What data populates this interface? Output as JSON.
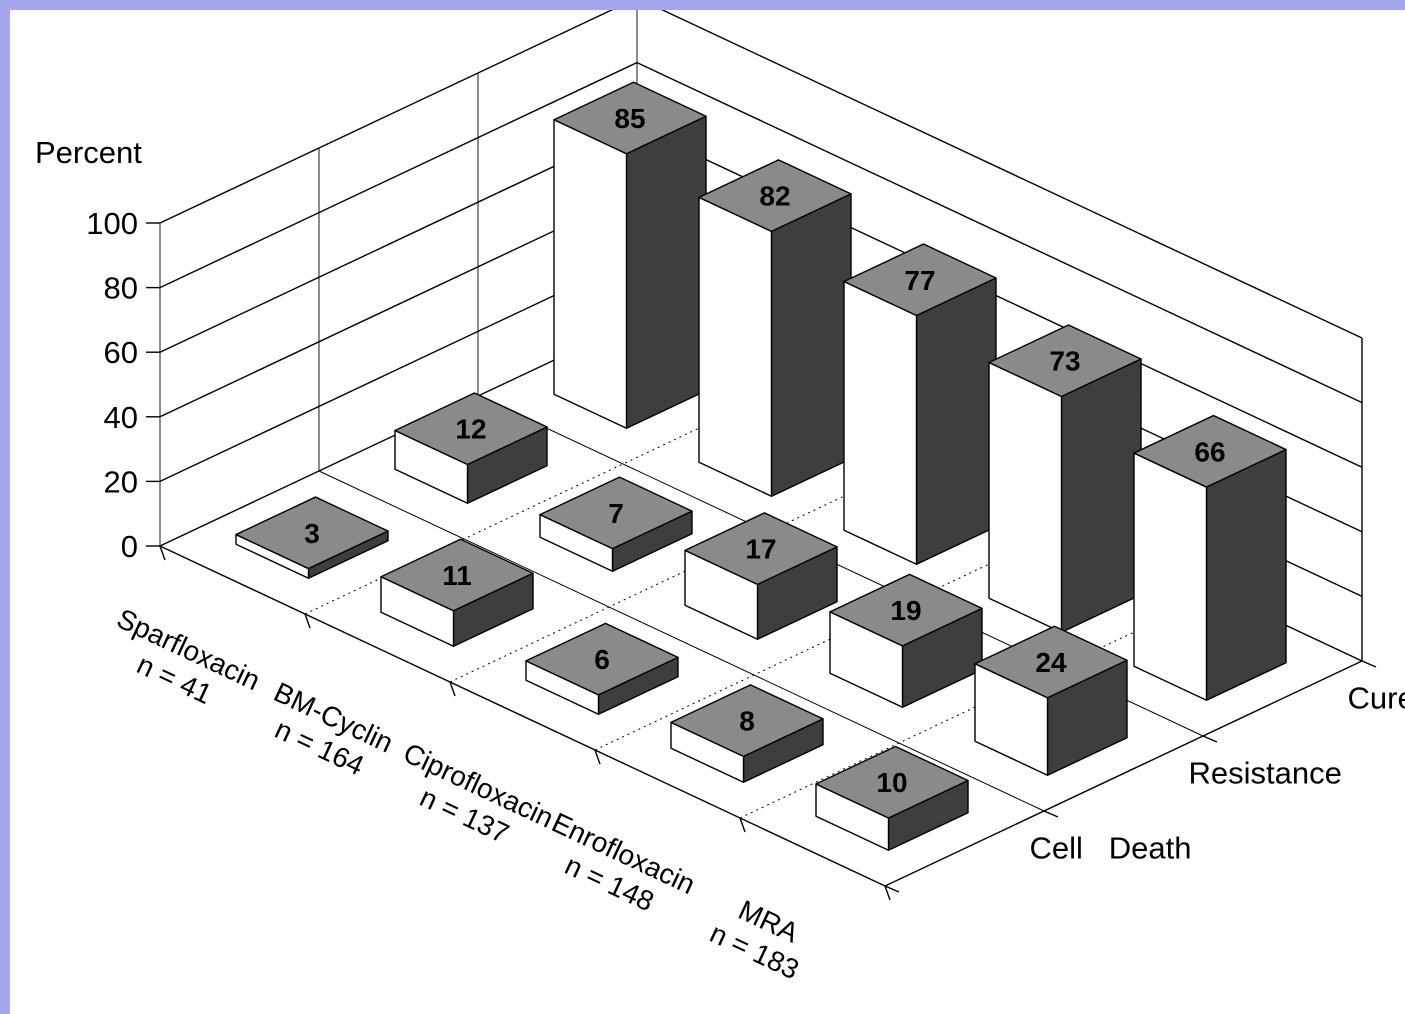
{
  "chart_data": {
    "type": "bar",
    "title": "",
    "ylabel": "Percent",
    "ylim": [
      0,
      100
    ],
    "yticks": [
      0,
      20,
      40,
      60,
      80,
      100
    ],
    "categories": [
      {
        "name": "Sparfloxacin",
        "n": "n = 41"
      },
      {
        "name": "BM-Cyclin",
        "n": "n = 164"
      },
      {
        "name": "Ciprofloxacin",
        "n": "n = 137"
      },
      {
        "name": "Enrofloxacin",
        "n": "n = 148"
      },
      {
        "name": "MRA",
        "n": "n = 183"
      }
    ],
    "series": [
      {
        "name": "Cell   Death",
        "values": [
          3,
          11,
          6,
          8,
          10
        ]
      },
      {
        "name": "Resistance",
        "values": [
          12,
          7,
          17,
          19,
          24
        ]
      },
      {
        "name": "Cured",
        "values": [
          85,
          82,
          77,
          73,
          66
        ]
      }
    ],
    "grid": true,
    "colors": {
      "top": "#8a8a8a",
      "front": "#ffffff",
      "side": "#3e3e3e",
      "border": "#a6a6ec"
    }
  }
}
